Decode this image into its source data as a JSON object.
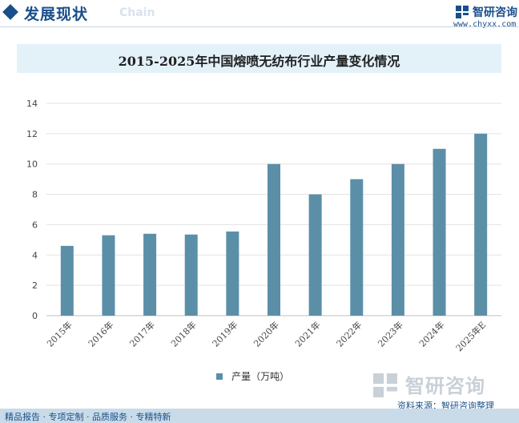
{
  "header": {
    "title": "发展现状",
    "subtitle": "Chain",
    "logo_icon": "chyxx-logo-icon",
    "logo_text": "智研咨询",
    "logo_url": "www.chyxx.com"
  },
  "colors": {
    "brand": "#1a4f8b",
    "bar": "#5b8fa8",
    "title_band": "#e3f1f9",
    "footer_band": "#c9dbe8"
  },
  "chart_data": {
    "type": "bar",
    "title": "2015-2025年中国熔喷无纺布行业产量变化情况",
    "xlabel": "",
    "ylabel": "",
    "categories": [
      "2015年",
      "2016年",
      "2017年",
      "2018年",
      "2019年",
      "2020年",
      "2021年",
      "2022年",
      "2023年",
      "2024年",
      "2025年E"
    ],
    "series": [
      {
        "name": "产量（万吨）",
        "values": [
          4.6,
          5.3,
          5.4,
          5.35,
          5.55,
          10,
          8,
          9,
          10,
          11,
          12
        ]
      }
    ],
    "ylim": [
      0,
      14
    ],
    "yticks": [
      0,
      2,
      4,
      6,
      8,
      10,
      12,
      14
    ],
    "grid": true,
    "legend_position": "bottom-center"
  },
  "watermark": {
    "logo_text": "智研咨询"
  },
  "source": "资料来源：智研咨询整理",
  "footer": {
    "text": "精品报告 · 专项定制 · 品质服务 · 专精特新"
  }
}
